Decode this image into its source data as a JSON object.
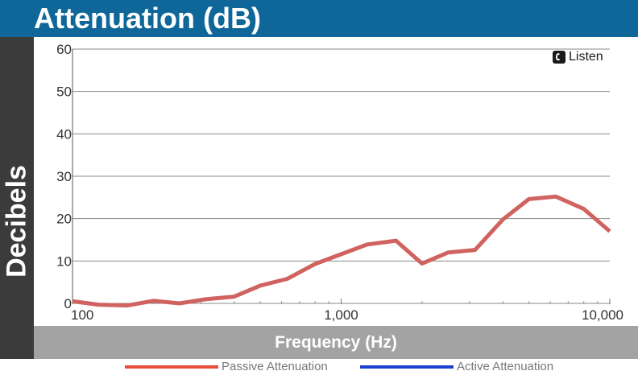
{
  "header": {
    "title": "Attenuation (dB)"
  },
  "brand": {
    "name": "Listen"
  },
  "colors": {
    "header_bg": "#0e6798",
    "ylabel_bg": "#3b3b3b",
    "xlabel_bg": "#a3a3a3",
    "passive": "#d0635f",
    "passive_legend": "#e84c3d",
    "active": "#1a3fd1",
    "grid": "#888888"
  },
  "chart_data": {
    "type": "line",
    "title": "Attenuation (dB)",
    "xlabel": "Frequency (Hz)",
    "ylabel": "Decibels",
    "xscale": "log",
    "xlim": [
      100,
      10000
    ],
    "ylim": [
      0,
      60
    ],
    "yticks": [
      0,
      10,
      20,
      30,
      40,
      50,
      60
    ],
    "xticks": [
      100,
      1000,
      10000
    ],
    "xtick_labels": [
      "100",
      "1,000",
      "10,000"
    ],
    "grid": true,
    "legend_position": "bottom",
    "series": [
      {
        "name": "Passive Attenuation",
        "x": [
          100,
          125,
          160,
          200,
          250,
          315,
          400,
          500,
          630,
          800,
          1000,
          1250,
          1600,
          2000,
          2500,
          3150,
          4000,
          5000,
          6300,
          8000,
          10000
        ],
        "y": [
          0.5,
          -0.3,
          -0.5,
          0.6,
          0,
          1,
          1.6,
          4.2,
          5.8,
          9.3,
          11.6,
          13.9,
          14.8,
          9.4,
          12,
          12.6,
          19.8,
          24.6,
          25.2,
          22.3,
          17
        ]
      },
      {
        "name": "Active Attenuation",
        "x": [],
        "y": []
      }
    ]
  }
}
